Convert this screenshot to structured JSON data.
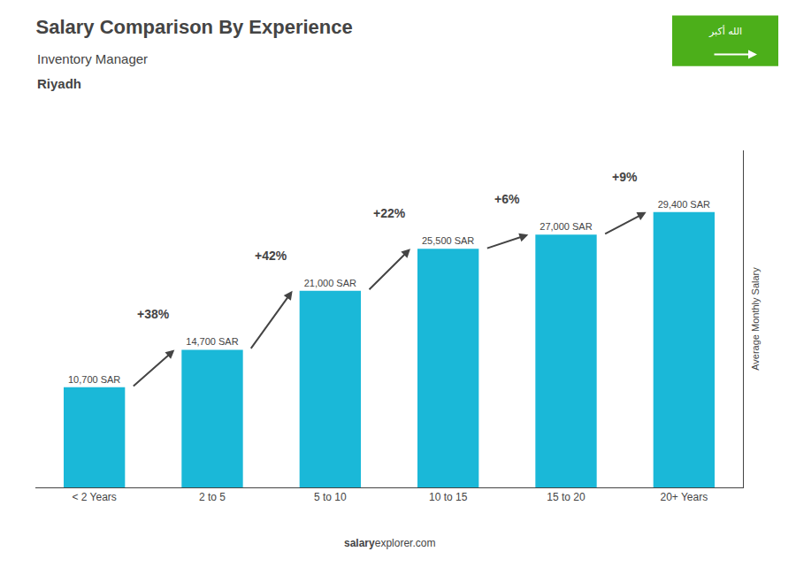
{
  "chart_data": {
    "type": "bar",
    "title": "Salary Comparison By Experience",
    "subtitle": [
      "Inventory Manager",
      "Riyadh"
    ],
    "ylabel": "Average Monthly Salary",
    "categories": [
      "< 2 Years",
      "2 to 5",
      "5 to 10",
      "10 to 15",
      "15 to 20",
      "20+ Years"
    ],
    "values": [
      10700,
      14700,
      21000,
      25500,
      27000,
      29400
    ],
    "value_labels": [
      "10,700 SAR",
      "14,700 SAR",
      "21,000 SAR",
      "25,500 SAR",
      "27,000 SAR",
      "29,400 SAR"
    ],
    "data_labels": true,
    "color": "#1ab8d8",
    "ylim": [
      0,
      36000
    ],
    "tick_labels": "x",
    "grid": false,
    "annotations": [
      "+38%",
      "+42%",
      "+22%",
      "+6%",
      "+9%"
    ],
    "footer": [
      "salary",
      "explorer.com"
    ],
    "flag_text": "الله أكبر",
    "flag_color": "#4caf1a"
  }
}
